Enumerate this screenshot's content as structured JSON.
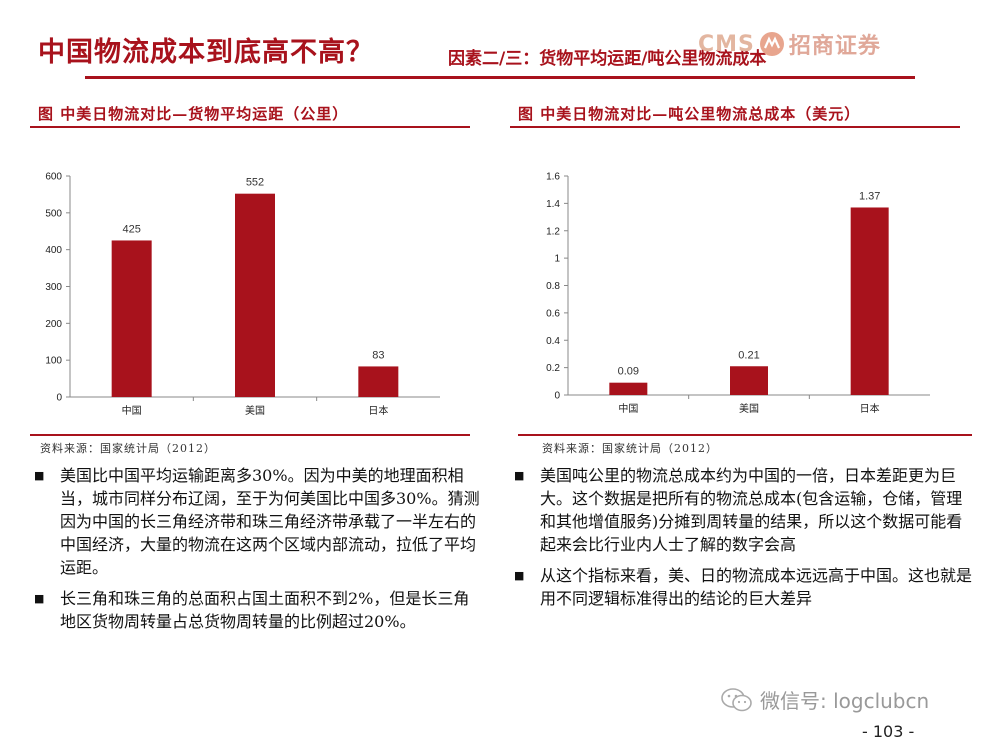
{
  "header": {
    "title": "中国物流成本到底高不高？",
    "subtitle": "因素二/三：货物平均运距/吨公里物流成本",
    "logo_text": "CMS",
    "logo_cn": "招商证券"
  },
  "left": {
    "title": "图  中美日物流对比—货物平均运距（公里）",
    "source": "资料来源：国家统计局（2012）",
    "bullets": [
      "美国比中国平均运输距离多30%。因为中美的地理面积相当，城市同样分布辽阔，至于为何美国比中国多30%。猜测因为中国的长三角经济带和珠三角经济带承载了一半左右的中国经济，大量的物流在这两个区域内部流动，拉低了平均运距。",
      "长三角和珠三角的总面积占国土面积不到2%，但是长三角地区货物周转量占总货物周转量的比例超过20%。"
    ]
  },
  "right": {
    "title": "图  中美日物流对比—吨公里物流总成本（美元）",
    "source": "资料来源：国家统计局（2012）",
    "bullets": [
      "美国吨公里的物流总成本约为中国的一倍，日本差距更为巨大。这个数据是把所有的物流总成本(包含运输，仓储，管理和其他增值服务)分摊到周转量的结果，所以这个数据可能看起来会比行业内人士了解的数字会高",
      "从这个指标来看，美、日的物流成本远远高于中国。这也就是用不同逻辑标准得出的结论的巨大差异"
    ]
  },
  "footer": {
    "wechat": "微信号: logclubcn",
    "page": "- 103 -"
  },
  "colors": {
    "accent": "#a8121c",
    "bar": "#a8121c"
  },
  "chart_data": [
    {
      "type": "bar",
      "categories": [
        "中国",
        "美国",
        "日本"
      ],
      "values": [
        425,
        552,
        83
      ],
      "value_labels": [
        "425",
        "552",
        "83"
      ],
      "ylim": [
        0,
        600
      ],
      "yticks": [
        0,
        100,
        200,
        300,
        400,
        500,
        600
      ],
      "ytick_labels": [
        "0",
        "100",
        "200",
        "300",
        "400",
        "500",
        "600"
      ],
      "grid": false
    },
    {
      "type": "bar",
      "categories": [
        "中国",
        "美国",
        "日本"
      ],
      "values": [
        0.09,
        0.21,
        1.37
      ],
      "value_labels": [
        "0.09",
        "0.21",
        "1.37"
      ],
      "ylim": [
        0,
        1.6
      ],
      "yticks": [
        0,
        0.2,
        0.4,
        0.6,
        0.8,
        1,
        1.2,
        1.4,
        1.6
      ],
      "ytick_labels": [
        "0",
        "0.2",
        "0.4",
        "0.6",
        "0.8",
        "1",
        "1.2",
        "1.4",
        "1.6"
      ],
      "grid": false
    }
  ]
}
